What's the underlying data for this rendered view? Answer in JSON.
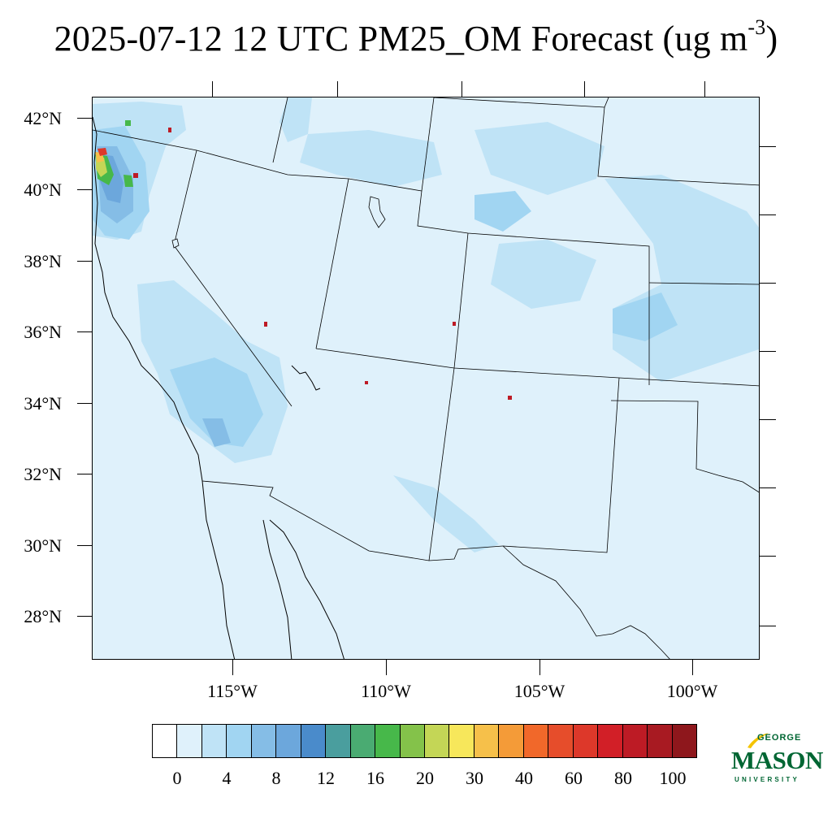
{
  "title": {
    "text": "2025-07-12 12 UTC PM25_OM Forecast (ug m",
    "superscript": "-3",
    "close": ")"
  },
  "map": {
    "lon_range": [
      -119.5,
      -97.9
    ],
    "lat_range": [
      26.8,
      42.6
    ],
    "lat_labels": [
      "42°N",
      "40°N",
      "38°N",
      "36°N",
      "34°N",
      "32°N",
      "30°N",
      "28°N"
    ],
    "lon_labels": [
      "115°W",
      "110°W",
      "105°W",
      "100°W"
    ],
    "background_color": "#dff1fb"
  },
  "colorbar": {
    "colors": [
      "#ffffff",
      "#dff1fb",
      "#bfe3f6",
      "#a1d5f2",
      "#85bde6",
      "#6ca7dc",
      "#4a8bcb",
      "#4a9e9e",
      "#4aab72",
      "#47b84a",
      "#84c24a",
      "#c4d656",
      "#f7e75b",
      "#f6c04a",
      "#f49b38",
      "#f1682a",
      "#e64d2b",
      "#dd382a",
      "#d21f27",
      "#bd1b25",
      "#a81a22",
      "#8e171c"
    ],
    "labels": [
      "0",
      "4",
      "8",
      "12",
      "16",
      "20",
      "30",
      "40",
      "60",
      "80",
      "100"
    ]
  },
  "logo": {
    "line1": "GEORGE",
    "line2": "MASON",
    "line3": "UNIVERSITY",
    "color": "#006633",
    "accent": "#f5c400"
  }
}
